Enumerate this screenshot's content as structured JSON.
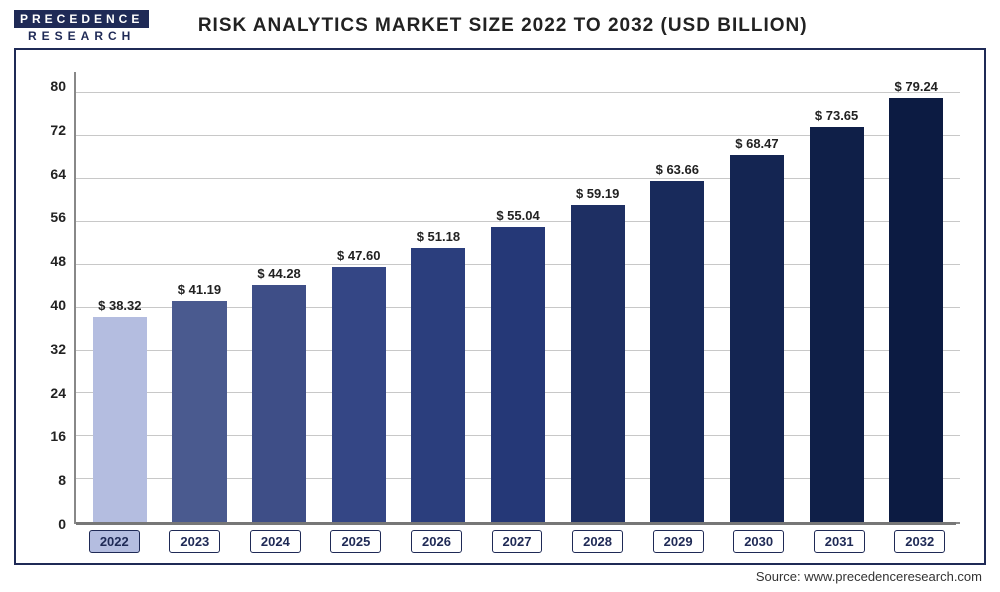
{
  "logo": {
    "top": "PRECEDENCE",
    "bottom": "RESEARCH"
  },
  "title": "RISK ANALYTICS MARKET SIZE 2022 TO 2032 (USD BILLION)",
  "source": "Source: www.precedenceresearch.com",
  "chart": {
    "type": "bar",
    "ylim": [
      0,
      84
    ],
    "yticks": [
      0,
      8,
      16,
      24,
      32,
      40,
      48,
      56,
      64,
      72,
      80
    ],
    "grid_color": "#c8c8c8",
    "axis_color": "#888888",
    "frame_color": "#1f2a56",
    "background_color": "#ffffff",
    "label_fontsize": 13,
    "bar_width": 0.68,
    "categories": [
      "2022",
      "2023",
      "2024",
      "2025",
      "2026",
      "2027",
      "2028",
      "2029",
      "2030",
      "2031",
      "2032"
    ],
    "category_highlight": 0,
    "currency_prefix": "$ ",
    "values": [
      38.32,
      41.19,
      44.28,
      47.6,
      51.18,
      55.04,
      59.19,
      63.66,
      68.47,
      73.65,
      79.24
    ],
    "bar_colors": [
      "#b4bde0",
      "#4a5a8f",
      "#3e4e87",
      "#344685",
      "#2b3e7d",
      "#253877",
      "#1e2f63",
      "#182a5b",
      "#142552",
      "#0f1f48",
      "#0c1b42"
    ],
    "x_label_highlight_bg": "#b4bde0"
  }
}
